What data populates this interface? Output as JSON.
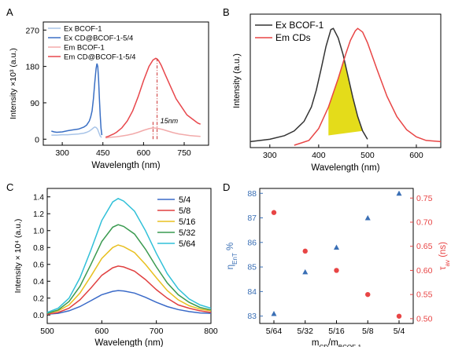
{
  "figure": {
    "panels": [
      {
        "id": "A",
        "label": "A",
        "xlabel": "Wavelength (nm)",
        "ylabel": "Intensity ×10³ (a.u.)",
        "annotation": "15nm",
        "legend": [
          "Ex BCOF-1",
          "Ex CD@BCOF-1-5/4",
          "Em BCOF-1",
          "Em CD@BCOF-1-5/4"
        ]
      },
      {
        "id": "B",
        "label": "B",
        "xlabel": "Wavelength (nm)",
        "ylabel": "Intensity (a.u.)",
        "legend": [
          "Ex BCOF-1",
          "Em CDs"
        ]
      },
      {
        "id": "C",
        "label": "C",
        "xlabel": "Wavelength (nm)",
        "ylabel": "Intensity × 10⁴ (a.u.)",
        "legend": [
          "5/4",
          "5/8",
          "5/16",
          "5/32",
          "5/64"
        ]
      },
      {
        "id": "D",
        "label": "D",
        "xlabel": "m_CD/m_BCOF-1",
        "ylabel_left": "η_EnT %",
        "ylabel_right": "τ_av (ns)"
      }
    ]
  },
  "chart_data": [
    {
      "panel": "A",
      "type": "line",
      "title": "",
      "xlabel": "Wavelength (nm)",
      "ylabel": "Intensity ×10³ (a.u.)",
      "xlim": [
        230,
        840
      ],
      "ylim": [
        -15,
        290
      ],
      "xticks": [
        300,
        450,
        600,
        750
      ],
      "yticks": [
        0,
        90,
        180,
        270
      ],
      "legend_position": "top-left",
      "grid": false,
      "colors": {
        "ex_bcof": "#a8c4e8",
        "ex_cd": "#3a6fc4",
        "em_bcof": "#f2aaaa",
        "em_cd": "#e8474c",
        "annotation": "#cc3333"
      },
      "annotation": {
        "text": "15nm",
        "x1": 635,
        "x2": 650
      },
      "series": [
        {
          "name": "Ex BCOF-1",
          "color": "#a8c4e8",
          "x": [
            260,
            280,
            300,
            320,
            340,
            360,
            380,
            390,
            400,
            410,
            415,
            420,
            425,
            430,
            433,
            436,
            440,
            445
          ],
          "y": [
            10,
            10,
            11,
            11,
            12,
            13,
            15,
            17,
            20,
            25,
            28,
            30,
            29,
            25,
            20,
            15,
            8,
            4
          ]
        },
        {
          "name": "Ex CD@BCOF-1-5/4",
          "color": "#3a6fc4",
          "x": [
            260,
            270,
            280,
            300,
            320,
            340,
            360,
            380,
            390,
            400,
            405,
            410,
            415,
            420,
            425,
            428,
            431,
            434,
            437,
            440,
            443,
            446
          ],
          "y": [
            20,
            18,
            17,
            18,
            21,
            23,
            25,
            30,
            35,
            45,
            55,
            70,
            100,
            140,
            175,
            187,
            180,
            150,
            100,
            60,
            28,
            10
          ]
        },
        {
          "name": "Em BCOF-1",
          "color": "#f2aaaa",
          "x": [
            460,
            480,
            500,
            520,
            540,
            560,
            580,
            600,
            620,
            635,
            650,
            670,
            690,
            710,
            730,
            750,
            770,
            790,
            810
          ],
          "y": [
            3,
            5,
            6,
            8,
            10,
            13,
            17,
            22,
            26,
            28,
            27,
            24,
            20,
            16,
            13,
            11,
            9,
            8,
            7
          ]
        },
        {
          "name": "Em CD@BCOF-1-5/4",
          "color": "#e8474c",
          "x": [
            460,
            470,
            480,
            490,
            500,
            520,
            540,
            560,
            580,
            600,
            620,
            635,
            645,
            650,
            655,
            665,
            680,
            700,
            720,
            740,
            760,
            780,
            800,
            810
          ],
          "y": [
            5,
            7,
            10,
            13,
            17,
            28,
            45,
            70,
            105,
            145,
            180,
            196,
            200,
            198,
            195,
            183,
            160,
            130,
            100,
            80,
            60,
            50,
            40,
            37
          ]
        }
      ]
    },
    {
      "panel": "B",
      "type": "area",
      "title": "",
      "xlabel": "Wavelength (nm)",
      "ylabel": "Intensity (a.u.)",
      "xlim": [
        260,
        650
      ],
      "ylim": [
        0,
        1.12
      ],
      "xticks": [
        300,
        400,
        500,
        600
      ],
      "yticks": [],
      "legend_position": "top-left",
      "grid": false,
      "colors": {
        "ex": "#333333",
        "em": "#e84545",
        "overlap": "#e4dc1a"
      },
      "overlap_region": [
        420,
        490
      ],
      "series": [
        {
          "name": "Ex BCOF-1",
          "color": "#333333",
          "x": [
            260,
            300,
            330,
            350,
            370,
            385,
            395,
            405,
            415,
            425,
            430,
            440,
            450,
            460,
            470,
            480,
            490,
            500
          ],
          "y": [
            0.05,
            0.07,
            0.1,
            0.14,
            0.22,
            0.34,
            0.48,
            0.66,
            0.85,
            0.99,
            1.0,
            0.92,
            0.78,
            0.6,
            0.42,
            0.26,
            0.14,
            0.07
          ]
        },
        {
          "name": "Em CDs",
          "color": "#e84545",
          "x": [
            350,
            380,
            400,
            420,
            440,
            455,
            465,
            475,
            480,
            490,
            500,
            520,
            540,
            560,
            580,
            600,
            620,
            650
          ],
          "y": [
            0.02,
            0.06,
            0.16,
            0.34,
            0.58,
            0.78,
            0.9,
            0.98,
            1.0,
            0.97,
            0.88,
            0.65,
            0.43,
            0.26,
            0.15,
            0.09,
            0.06,
            0.05
          ]
        }
      ]
    },
    {
      "panel": "C",
      "type": "line",
      "title": "",
      "xlabel": "Wavelength (nm)",
      "ylabel": "Intensity × 10⁴ (a.u.)",
      "xlim": [
        500,
        800
      ],
      "ylim": [
        -0.1,
        1.5
      ],
      "xticks": [
        500,
        600,
        700,
        800
      ],
      "yticks": [
        0.0,
        0.2,
        0.4,
        0.6,
        0.8,
        1.0,
        1.2,
        1.4
      ],
      "legend_position": "top-right",
      "grid": false,
      "categories_x": [
        500,
        520,
        540,
        560,
        580,
        600,
        620,
        630,
        640,
        660,
        680,
        700,
        720,
        740,
        760,
        780,
        800
      ],
      "series": [
        {
          "name": "5/4",
          "color": "#3a6ac8",
          "y": [
            0.01,
            0.02,
            0.05,
            0.1,
            0.17,
            0.24,
            0.28,
            0.29,
            0.285,
            0.26,
            0.21,
            0.15,
            0.1,
            0.065,
            0.04,
            0.025,
            0.02
          ]
        },
        {
          "name": "5/8",
          "color": "#e04040",
          "y": [
            0.01,
            0.03,
            0.08,
            0.18,
            0.32,
            0.47,
            0.56,
            0.58,
            0.57,
            0.52,
            0.42,
            0.3,
            0.2,
            0.12,
            0.08,
            0.05,
            0.03
          ]
        },
        {
          "name": "5/16",
          "color": "#e8c020",
          "y": [
            0.02,
            0.05,
            0.12,
            0.26,
            0.46,
            0.67,
            0.8,
            0.83,
            0.81,
            0.74,
            0.6,
            0.44,
            0.29,
            0.18,
            0.11,
            0.07,
            0.05
          ]
        },
        {
          "name": "5/32",
          "color": "#3a9a50",
          "y": [
            0.02,
            0.06,
            0.16,
            0.34,
            0.6,
            0.87,
            1.04,
            1.07,
            1.05,
            0.96,
            0.78,
            0.57,
            0.38,
            0.24,
            0.15,
            0.09,
            0.06
          ]
        },
        {
          "name": "5/64",
          "color": "#30c0d8",
          "y": [
            0.03,
            0.08,
            0.2,
            0.44,
            0.77,
            1.12,
            1.34,
            1.38,
            1.35,
            1.23,
            1.0,
            0.73,
            0.49,
            0.31,
            0.19,
            0.12,
            0.08
          ]
        }
      ]
    },
    {
      "panel": "D",
      "type": "scatter",
      "title": "",
      "xlabel": "m_CD/m_BCOF-1",
      "categories": [
        "5/64",
        "5/32",
        "5/16",
        "5/8",
        "5/4"
      ],
      "left_axis": {
        "label": "η_EnT %",
        "ylim": [
          82.7,
          88.2
        ],
        "ticks": [
          83,
          84,
          85,
          86,
          87,
          88
        ],
        "color": "#3a6fb5"
      },
      "right_axis": {
        "label": "τ_av (ns)",
        "ylim": [
          0.49,
          0.77
        ],
        "ticks": [
          0.5,
          0.55,
          0.6,
          0.65,
          0.7,
          0.75
        ],
        "color": "#e84545"
      },
      "grid": false,
      "series": [
        {
          "name": "η_EnT",
          "axis": "left",
          "marker": "triangle",
          "color": "#3a6fb5",
          "values": [
            83.1,
            84.8,
            85.8,
            87.0,
            88.0
          ]
        },
        {
          "name": "τ_av",
          "axis": "right",
          "marker": "circle",
          "color": "#e84545",
          "values": [
            0.72,
            0.64,
            0.6,
            0.55,
            0.505
          ]
        }
      ]
    }
  ]
}
